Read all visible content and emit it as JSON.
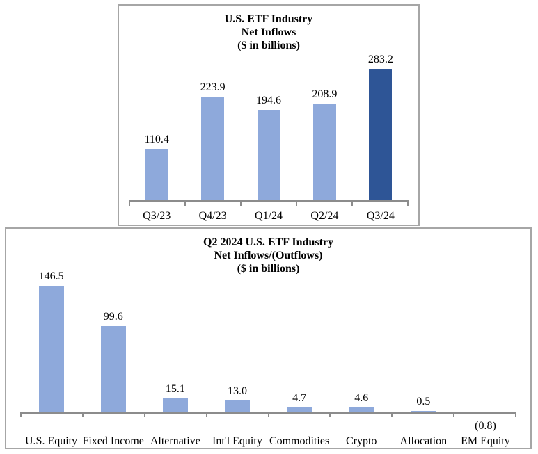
{
  "colors": {
    "bar_light_blue": "#8EA9DB",
    "bar_dark_blue": "#2E5596",
    "axis_gray": "#8C8C8C",
    "panel_border_gray": "#A6A6A6",
    "text": "#000000"
  },
  "chart_data": [
    {
      "type": "bar",
      "title": "U.S. ETF Industry Net Inflows ($ in billions)",
      "title_lines": [
        "U.S. ETF Industry",
        "Net Inflows",
        "($ in billions)"
      ],
      "categories": [
        "Q3/23",
        "Q4/23",
        "Q1/24",
        "Q2/24",
        "Q3/24"
      ],
      "values": [
        110.4,
        223.9,
        194.6,
        208.9,
        283.2
      ],
      "value_labels": [
        "110.4",
        "223.9",
        "194.6",
        "208.9",
        "283.2"
      ],
      "bar_colors": [
        "#8EA9DB",
        "#8EA9DB",
        "#8EA9DB",
        "#8EA9DB",
        "#2E5596"
      ],
      "xlabel": "",
      "ylabel": "",
      "ylim": [
        0,
        300
      ],
      "grid": false,
      "legend": false,
      "notes": "Last bar (Q3/24) highlighted dark blue; value labels above bars; no y-axis shown"
    },
    {
      "type": "bar",
      "title": "Q2 2024 U.S. ETF Industry Net Inflows/(Outflows) ($ in billions)",
      "title_lines": [
        "Q2 2024 U.S. ETF Industry",
        "Net Inflows/(Outflows)",
        "($ in billions)"
      ],
      "categories": [
        "U.S. Equity",
        "Fixed Income",
        "Alternative",
        "Int'l Equity",
        "Commodities",
        "Crypto",
        "Allocation",
        "EM Equity"
      ],
      "values": [
        146.5,
        99.6,
        15.1,
        13.0,
        4.7,
        4.6,
        0.5,
        -0.8
      ],
      "value_labels": [
        "146.5",
        "99.6",
        "15.1",
        "13.0",
        "4.7",
        "4.6",
        "0.5",
        "(0.8)"
      ],
      "bar_colors": [
        "#8EA9DB",
        "#8EA9DB",
        "#8EA9DB",
        "#8EA9DB",
        "#8EA9DB",
        "#8EA9DB",
        "#8EA9DB",
        "#8EA9DB"
      ],
      "xlabel": "",
      "ylabel": "",
      "ylim": [
        -10,
        160
      ],
      "grid": false,
      "legend": false,
      "notes": "Negative EM Equity value shown in parentheses below the axis; no y-axis shown"
    }
  ]
}
